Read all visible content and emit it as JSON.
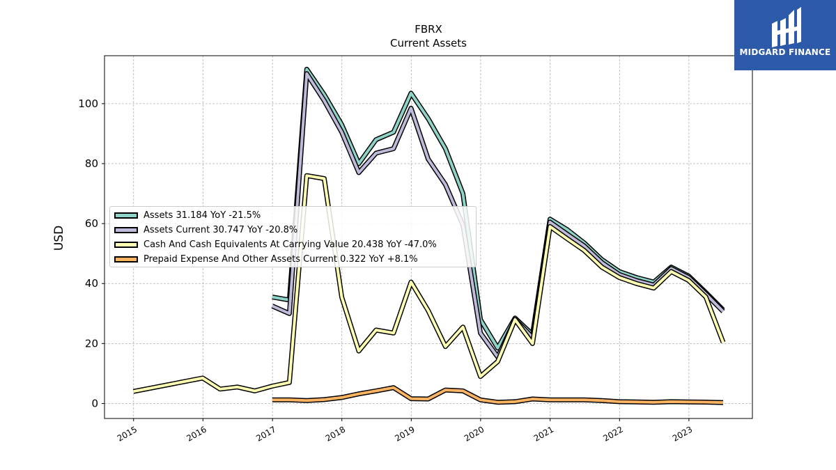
{
  "chart_data": {
    "type": "line",
    "title": "FBRX",
    "subtitle": "Current  Assets",
    "ylabel": "USD",
    "xlabel": "",
    "xlim": [
      "2014-08-01",
      "2023-12-01"
    ],
    "ylim": [
      -5,
      116
    ],
    "yticks": [
      0,
      20,
      40,
      60,
      80,
      100
    ],
    "xticks": [
      "2015",
      "2016",
      "2017",
      "2018",
      "2019",
      "2020",
      "2021",
      "2022",
      "2023"
    ],
    "grid": true,
    "legend_position": "center-left",
    "series": [
      {
        "name": "Assets  31.184 YoY -21.5%",
        "color": "#8dd3c7",
        "points": [
          [
            "2016-12-31",
            35.5
          ],
          [
            "2017-03-31",
            34.5
          ],
          [
            "2017-06-30",
            111.5
          ],
          [
            "2017-09-30",
            103.0
          ],
          [
            "2017-12-31",
            93.0
          ],
          [
            "2018-03-31",
            80.0
          ],
          [
            "2018-06-30",
            88.0
          ],
          [
            "2018-09-30",
            90.5
          ],
          [
            "2018-12-31",
            103.5
          ],
          [
            "2019-03-31",
            95.0
          ],
          [
            "2019-06-30",
            85.0
          ],
          [
            "2019-09-30",
            70.0
          ],
          [
            "2019-12-31",
            28.0
          ],
          [
            "2020-03-31",
            18.5
          ],
          [
            "2020-06-30",
            28.5
          ],
          [
            "2020-09-30",
            23.0
          ],
          [
            "2020-12-31",
            61.5
          ],
          [
            "2021-03-31",
            58.0
          ],
          [
            "2021-06-30",
            53.5
          ],
          [
            "2021-09-30",
            48.0
          ],
          [
            "2021-12-31",
            44.0
          ],
          [
            "2022-03-31",
            42.0
          ],
          [
            "2022-06-30",
            40.5
          ],
          [
            "2022-09-30",
            45.5
          ],
          [
            "2022-12-31",
            42.5
          ],
          [
            "2023-03-31",
            37.0
          ],
          [
            "2023-06-30",
            31.2
          ]
        ]
      },
      {
        "name": "Assets Current  30.747 YoY -20.8%",
        "color": "#bebada",
        "points": [
          [
            "2016-12-31",
            32.5
          ],
          [
            "2017-03-31",
            30.0
          ],
          [
            "2017-06-30",
            110.0
          ],
          [
            "2017-09-30",
            101.0
          ],
          [
            "2017-12-31",
            90.5
          ],
          [
            "2018-03-31",
            77.0
          ],
          [
            "2018-06-30",
            83.5
          ],
          [
            "2018-09-30",
            85.0
          ],
          [
            "2018-12-31",
            98.5
          ],
          [
            "2019-03-31",
            81.5
          ],
          [
            "2019-06-30",
            73.0
          ],
          [
            "2019-09-30",
            59.5
          ],
          [
            "2019-12-31",
            23.5
          ],
          [
            "2020-03-31",
            15.5
          ],
          [
            "2020-06-30",
            28.0
          ],
          [
            "2020-09-30",
            22.0
          ],
          [
            "2020-12-31",
            60.5
          ],
          [
            "2021-03-31",
            56.5
          ],
          [
            "2021-06-30",
            52.5
          ],
          [
            "2021-09-30",
            47.0
          ],
          [
            "2021-12-31",
            43.0
          ],
          [
            "2022-03-31",
            41.0
          ],
          [
            "2022-06-30",
            39.5
          ],
          [
            "2022-09-30",
            45.0
          ],
          [
            "2022-12-31",
            42.0
          ],
          [
            "2023-03-31",
            36.5
          ],
          [
            "2023-06-30",
            30.7
          ]
        ]
      },
      {
        "name": "Cash And Cash Equivalents At Carrying Value  20.438 YoY -47.0%",
        "color": "#ffffb3",
        "points": [
          [
            "2014-12-31",
            4.0
          ],
          [
            "2015-12-31",
            8.5
          ],
          [
            "2016-03-31",
            4.8
          ],
          [
            "2016-06-30",
            5.5
          ],
          [
            "2016-09-30",
            4.2
          ],
          [
            "2016-12-31",
            5.8
          ],
          [
            "2017-03-31",
            7.0
          ],
          [
            "2017-06-30",
            76.0
          ],
          [
            "2017-09-30",
            75.0
          ],
          [
            "2017-12-31",
            35.5
          ],
          [
            "2018-03-31",
            17.5
          ],
          [
            "2018-06-30",
            24.5
          ],
          [
            "2018-09-30",
            23.5
          ],
          [
            "2018-12-31",
            40.5
          ],
          [
            "2019-03-31",
            31.0
          ],
          [
            "2019-06-30",
            19.0
          ],
          [
            "2019-09-30",
            25.5
          ],
          [
            "2019-12-31",
            9.0
          ],
          [
            "2020-03-31",
            14.0
          ],
          [
            "2020-06-30",
            28.0
          ],
          [
            "2020-09-30",
            20.0
          ],
          [
            "2020-12-31",
            59.0
          ],
          [
            "2021-03-31",
            55.0
          ],
          [
            "2021-06-30",
            51.0
          ],
          [
            "2021-09-30",
            45.5
          ],
          [
            "2021-12-31",
            42.0
          ],
          [
            "2022-03-31",
            40.0
          ],
          [
            "2022-06-30",
            38.5
          ],
          [
            "2022-09-30",
            44.0
          ],
          [
            "2022-12-31",
            41.0
          ],
          [
            "2023-03-31",
            35.5
          ],
          [
            "2023-06-30",
            20.4
          ]
        ]
      },
      {
        "name": "Prepaid Expense And Other Assets Current  0.322 YoY +8.1%",
        "color": "#fdb462",
        "points": [
          [
            "2016-12-31",
            1.2
          ],
          [
            "2017-03-31",
            1.2
          ],
          [
            "2017-06-30",
            1.0
          ],
          [
            "2017-09-30",
            1.3
          ],
          [
            "2017-12-31",
            2.0
          ],
          [
            "2018-03-31",
            3.2
          ],
          [
            "2018-06-30",
            4.2
          ],
          [
            "2018-09-30",
            5.3
          ],
          [
            "2018-12-31",
            1.6
          ],
          [
            "2019-03-31",
            1.5
          ],
          [
            "2019-06-30",
            4.5
          ],
          [
            "2019-09-30",
            4.2
          ],
          [
            "2019-12-31",
            1.2
          ],
          [
            "2020-03-31",
            0.4
          ],
          [
            "2020-06-30",
            0.6
          ],
          [
            "2020-09-30",
            1.5
          ],
          [
            "2020-12-31",
            1.2
          ],
          [
            "2021-03-31",
            1.2
          ],
          [
            "2021-06-30",
            1.2
          ],
          [
            "2021-09-30",
            1.0
          ],
          [
            "2021-12-31",
            0.6
          ],
          [
            "2022-03-31",
            0.5
          ],
          [
            "2022-06-30",
            0.4
          ],
          [
            "2022-09-30",
            0.6
          ],
          [
            "2022-12-31",
            0.5
          ],
          [
            "2023-03-31",
            0.45
          ],
          [
            "2023-06-30",
            0.32
          ]
        ]
      }
    ]
  },
  "logo": {
    "text": "MIDGARD FINANCE"
  }
}
